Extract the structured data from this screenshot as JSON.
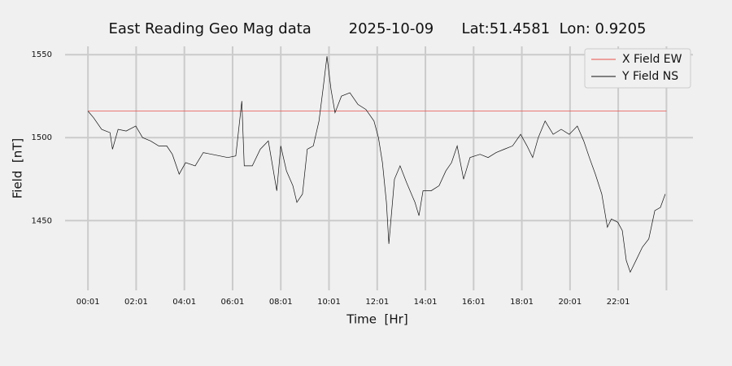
{
  "chart_data": {
    "type": "line",
    "title": "East Reading Geo Mag data        2025-10-09      Lat:51.4581  Lon: 0.9205",
    "xlabel": "Time  [Hr]",
    "ylabel": "Field  [nT]",
    "xlim": [
      -56,
      1507
    ],
    "ylim": [
      1408,
      1555
    ],
    "xticks": [
      {
        "value": 1,
        "label": "00:01"
      },
      {
        "value": 121,
        "label": "02:01"
      },
      {
        "value": 241,
        "label": "04:01"
      },
      {
        "value": 361,
        "label": "06:01"
      },
      {
        "value": 481,
        "label": "08:01"
      },
      {
        "value": 601,
        "label": "10:01"
      },
      {
        "value": 721,
        "label": "12:01"
      },
      {
        "value": 841,
        "label": "14:01"
      },
      {
        "value": 961,
        "label": "16:01"
      },
      {
        "value": 1081,
        "label": "18:01"
      },
      {
        "value": 1201,
        "label": "20:01"
      },
      {
        "value": 1321,
        "label": "22:01"
      },
      {
        "value": 1441,
        "label": ""
      }
    ],
    "yticks": [
      1450,
      1500,
      1550
    ],
    "grid": true,
    "legend": "upper right",
    "series": [
      {
        "name": "X Field EW",
        "color": "#e8504a",
        "x": [
          1,
          1441
        ],
        "values": [
          1516,
          1516
        ]
      },
      {
        "name": "Y Field NS",
        "color": "#111111",
        "x": [
          1,
          15,
          35,
          56,
          62,
          76,
          96,
          120,
          137,
          157,
          177,
          197,
          211,
          228,
          244,
          268,
          288,
          309,
          329,
          349,
          369,
          384,
          390,
          410,
          430,
          450,
          471,
          481,
          495,
          511,
          521,
          535,
          547,
          562,
          576,
          586,
          596,
          606,
          616,
          632,
          653,
          673,
          693,
          713,
          724,
          734,
          744,
          750,
          764,
          778,
          794,
          815,
          825,
          835,
          855,
          875,
          892,
          906,
          920,
          936,
          952,
          977,
          997,
          1017,
          1037,
          1058,
          1078,
          1094,
          1108,
          1122,
          1139,
          1159,
          1179,
          1199,
          1219,
          1235,
          1249,
          1264,
          1280,
          1294,
          1304,
          1320,
          1331,
          1341,
          1351,
          1365,
          1381,
          1397,
          1412,
          1426,
          1438
        ],
        "values": [
          1516,
          1512,
          1505,
          1503,
          1493,
          1505,
          1504,
          1507,
          1500,
          1498,
          1495,
          1495,
          1490,
          1478,
          1485,
          1483,
          1491,
          1490,
          1489,
          1488,
          1489,
          1522,
          1483,
          1483,
          1493,
          1498,
          1468,
          1495,
          1480,
          1471,
          1461,
          1466,
          1493,
          1495,
          1510,
          1529,
          1549,
          1529,
          1515,
          1525,
          1527,
          1520,
          1517,
          1510,
          1500,
          1485,
          1461,
          1436,
          1475,
          1483,
          1473,
          1461,
          1453,
          1468,
          1468,
          1471,
          1480,
          1485,
          1495,
          1475,
          1488,
          1490,
          1488,
          1491,
          1493,
          1495,
          1502,
          1495,
          1488,
          1500,
          1510,
          1502,
          1505,
          1502,
          1507,
          1498,
          1488,
          1478,
          1466,
          1446,
          1451,
          1449,
          1444,
          1426,
          1419,
          1426,
          1434,
          1439,
          1456,
          1458,
          1466
        ]
      }
    ]
  }
}
